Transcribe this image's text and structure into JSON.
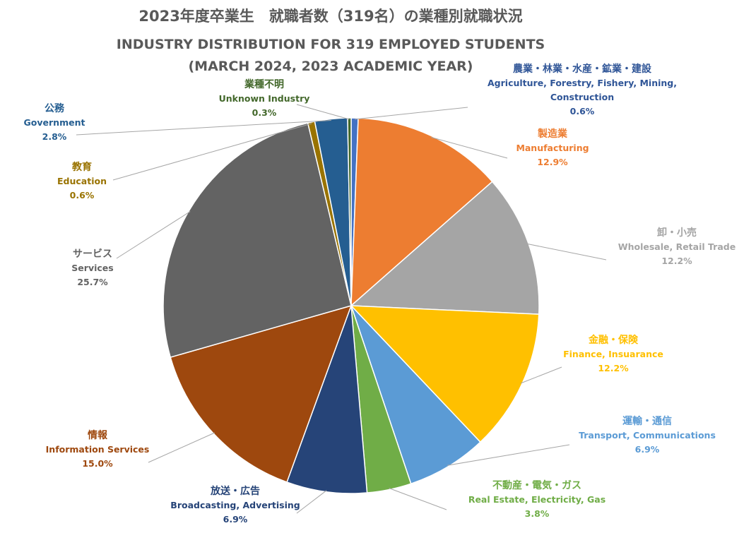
{
  "chart_data": {
    "type": "pie",
    "title": "2023年度卒業生　就職者数（319名）の業種別就職状況",
    "subtitle": "INDUSTRY DISTRIBUTION FOR 319 EMPLOYED STUDENTS",
    "subtitle2": "(MARCH 2024, 2023 ACADEMIC YEAR)",
    "slices": [
      {
        "jp": "農業・林業・水産・鉱業・建設",
        "en": "Agriculture, Forestry, Fishery, Mining,",
        "en2": "Construction",
        "value": 0.6,
        "label": "0.6%",
        "color": "#4472C4",
        "label_color": "#2F5597"
      },
      {
        "jp": "製造業",
        "en": "Manufacturing",
        "value": 12.9,
        "label": "12.9%",
        "color": "#ED7D31",
        "label_color": "#ED7D31"
      },
      {
        "jp": "卸・小売",
        "en": "Wholesale, Retail Trade",
        "value": 12.2,
        "label": "12.2%",
        "color": "#A5A5A5",
        "label_color": "#A5A5A5"
      },
      {
        "jp": "金融・保険",
        "en": "Finance, Insuarance",
        "value": 12.2,
        "label": "12.2%",
        "color": "#FFC000",
        "label_color": "#FFC000"
      },
      {
        "jp": "運輸・通信",
        "en": "Transport, Communications",
        "value": 6.9,
        "label": "6.9%",
        "color": "#5B9BD5",
        "label_color": "#5B9BD5"
      },
      {
        "jp": "不動産・電気・ガス",
        "en": "Real Estate, Electricity, Gas",
        "value": 3.8,
        "label": "3.8%",
        "color": "#70AD47",
        "label_color": "#70AD47"
      },
      {
        "jp": "放送・広告",
        "en": "Broadcasting, Advertising",
        "value": 6.9,
        "label": "6.9%",
        "color": "#264478",
        "label_color": "#264478"
      },
      {
        "jp": "情報",
        "en": "Information Services",
        "value": 15.0,
        "label": "15.0%",
        "color": "#9E480E",
        "label_color": "#9E480E"
      },
      {
        "jp": "サービス",
        "en": "Services",
        "value": 25.7,
        "label": "25.7%",
        "color": "#636363",
        "label_color": "#636363"
      },
      {
        "jp": "教育",
        "en": "Education",
        "value": 0.6,
        "label": "0.6%",
        "color": "#997300",
        "label_color": "#997300"
      },
      {
        "jp": "公務",
        "en": "Government",
        "value": 2.8,
        "label": "2.8%",
        "color": "#255E91",
        "label_color": "#255E91"
      },
      {
        "jp": "業種不明",
        "en": "Unknown Industry",
        "value": 0.3,
        "label": "0.3%",
        "color": "#43682B",
        "label_color": "#43682B"
      }
    ]
  }
}
